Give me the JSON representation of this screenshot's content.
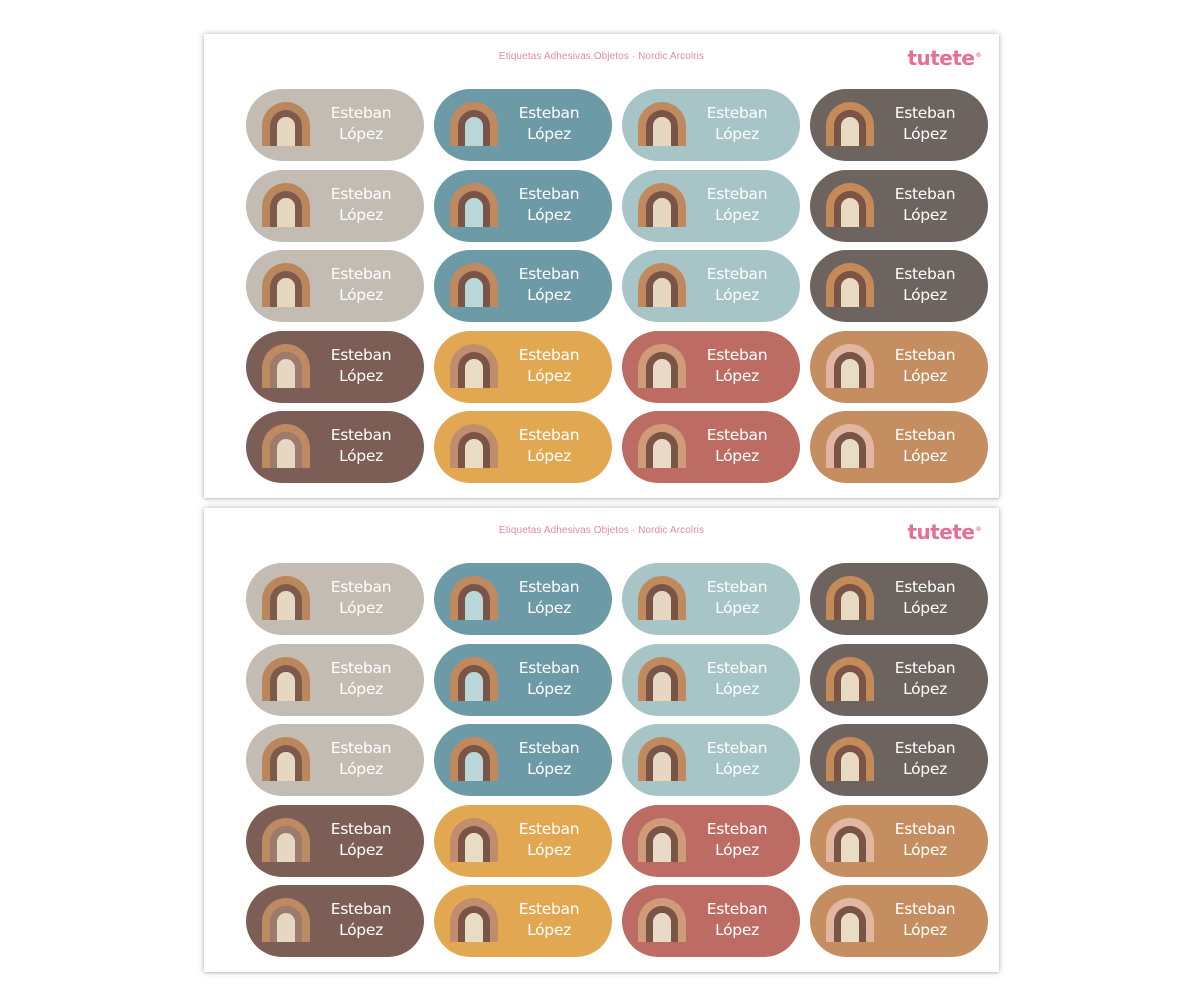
{
  "sheets": [
    {
      "title": "Etiquetas Adhesivas Objetos · Nordic Arcolris",
      "brand": "tutete",
      "brand_mark": "®"
    },
    {
      "title": "Etiquetas Adhesivas Objetos · Nordic Arcolris",
      "brand": "tutete",
      "brand_mark": "®"
    }
  ],
  "label_text": {
    "first_name": "Esteban",
    "last_name": "López"
  },
  "palette": {
    "beige": {
      "bg": "#c3bcb2",
      "outer": "#b9875b",
      "middle": "#7e5a4d",
      "inner": "#e6d7c3"
    },
    "teal": {
      "bg": "#6c9aa6",
      "outer": "#c18a5e",
      "middle": "#7a5547",
      "inner": "#b9d6d8"
    },
    "mint": {
      "bg": "#a7c4c7",
      "outer": "#c18a5e",
      "middle": "#7a5547",
      "inner": "#e6d7c3"
    },
    "grey": {
      "bg": "#6d6460",
      "outer": "#c48a58",
      "middle": "#7a5547",
      "inner": "#e8d9c2"
    },
    "brown": {
      "bg": "#7d5e56",
      "outer": "#bd8a61",
      "middle": "#9c7a6c",
      "inner": "#e6d7c3"
    },
    "mustard": {
      "bg": "#e2a851",
      "outer": "#c08e6e",
      "middle": "#7a5547",
      "inner": "#e9dcc5"
    },
    "rose": {
      "bg": "#bd6c63",
      "outer": "#d09b79",
      "middle": "#7a5547",
      "inner": "#ead9c6"
    },
    "caramel": {
      "bg": "#c58e60",
      "outer": "#e2b7a2",
      "middle": "#7a5547",
      "inner": "#e9dcc5"
    }
  },
  "layout_rows": [
    [
      "beige",
      "teal",
      "mint",
      "grey"
    ],
    [
      "beige",
      "teal",
      "mint",
      "grey"
    ],
    [
      "beige",
      "teal",
      "mint",
      "grey"
    ],
    [
      "brown",
      "mustard",
      "rose",
      "caramel"
    ],
    [
      "brown",
      "mustard",
      "rose",
      "caramel"
    ]
  ],
  "icon": "rainbow-icon"
}
